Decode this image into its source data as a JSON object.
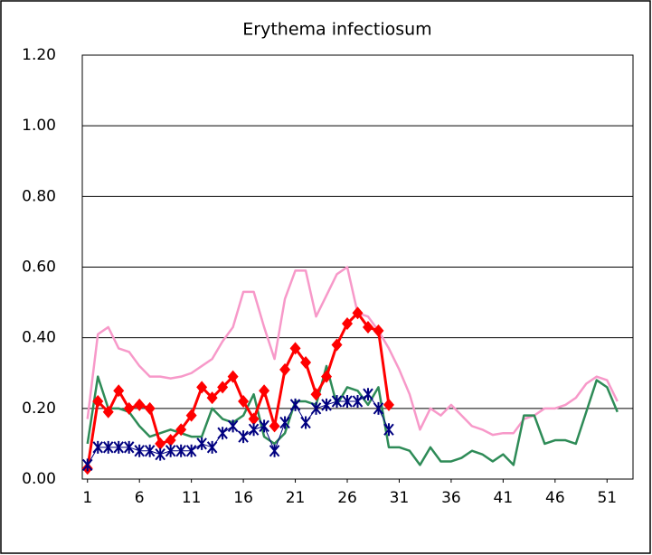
{
  "chart_data": {
    "type": "line",
    "title": "Erythema infectiosum",
    "x": [
      1,
      2,
      3,
      4,
      5,
      6,
      7,
      8,
      9,
      10,
      11,
      12,
      13,
      14,
      15,
      16,
      17,
      18,
      19,
      20,
      21,
      22,
      23,
      24,
      25,
      26,
      27,
      28,
      29,
      30,
      31,
      32,
      33,
      34,
      35,
      36,
      37,
      38,
      39,
      40,
      41,
      42,
      43,
      44,
      45,
      46,
      47,
      48,
      49,
      50,
      51,
      52
    ],
    "xlim": [
      0.5,
      53.5
    ],
    "xticks": [
      1,
      6,
      11,
      16,
      21,
      26,
      31,
      36,
      41,
      46,
      51
    ],
    "ylim": [
      0,
      1.2
    ],
    "yticks": [
      {
        "value": 0,
        "label": "0.00"
      },
      {
        "value": 0.2,
        "label": "0.20"
      },
      {
        "value": 0.4,
        "label": "0.40"
      },
      {
        "value": 0.6,
        "label": "0.60"
      },
      {
        "value": 0.8,
        "label": "0.80"
      },
      {
        "value": 1.0,
        "label": "1.00"
      },
      {
        "value": 1.2,
        "label": "1.20"
      }
    ],
    "grid": true,
    "series": [
      {
        "color": "#f799c9",
        "width": 2.5,
        "marker": "none",
        "values": [
          0.17,
          0.41,
          0.43,
          0.37,
          0.36,
          0.32,
          0.29,
          0.29,
          0.285,
          0.29,
          0.3,
          0.32,
          0.34,
          0.39,
          0.43,
          0.53,
          0.53,
          0.43,
          0.34,
          0.51,
          0.59,
          0.59,
          0.46,
          0.52,
          0.58,
          0.6,
          0.47,
          0.46,
          0.42,
          0.37,
          0.31,
          0.24,
          0.14,
          0.2,
          0.18,
          0.21,
          0.18,
          0.15,
          0.14,
          0.125,
          0.13,
          0.13,
          0.17,
          0.18,
          0.2,
          0.2,
          0.21,
          0.23,
          0.27,
          0.29,
          0.28,
          0.22
        ]
      },
      {
        "color": "#2e8b57",
        "width": 2.5,
        "marker": "none",
        "values": [
          0.1,
          0.29,
          0.2,
          0.2,
          0.19,
          0.15,
          0.12,
          0.13,
          0.14,
          0.13,
          0.12,
          0.12,
          0.2,
          0.17,
          0.16,
          0.18,
          0.24,
          0.12,
          0.1,
          0.13,
          0.22,
          0.22,
          0.21,
          0.32,
          0.21,
          0.26,
          0.25,
          0.21,
          0.26,
          0.09,
          0.09,
          0.08,
          0.04,
          0.09,
          0.05,
          0.05,
          0.06,
          0.08,
          0.07,
          0.05,
          0.07,
          0.04,
          0.18,
          0.18,
          0.1,
          0.11,
          0.11,
          0.1,
          0.19,
          0.28,
          0.26,
          0.19
        ]
      },
      {
        "color": "#ff0000",
        "width": 3,
        "marker": "diamond",
        "values": [
          0.03,
          0.22,
          0.19,
          0.25,
          0.2,
          0.21,
          0.2,
          0.1,
          0.11,
          0.14,
          0.18,
          0.26,
          0.23,
          0.26,
          0.29,
          0.22,
          0.17,
          0.25,
          0.15,
          0.31,
          0.37,
          0.33,
          0.24,
          0.29,
          0.38,
          0.44,
          0.47,
          0.43,
          0.42,
          0.21,
          null,
          null,
          null,
          null,
          null,
          null,
          null,
          null,
          null,
          null,
          null,
          null,
          null,
          null,
          null,
          null,
          null,
          null,
          null,
          null,
          null,
          null
        ]
      },
      {
        "color": "#000080",
        "width": 1,
        "marker": "asterisk",
        "values": [
          0.04,
          0.09,
          0.09,
          0.09,
          0.09,
          0.08,
          0.08,
          0.07,
          0.08,
          0.08,
          0.08,
          0.1,
          0.09,
          0.13,
          0.15,
          0.12,
          0.14,
          0.15,
          0.08,
          0.16,
          0.21,
          0.16,
          0.2,
          0.21,
          0.22,
          0.22,
          0.22,
          0.24,
          0.2,
          0.14,
          null,
          null,
          null,
          null,
          null,
          null,
          null,
          null,
          null,
          null,
          null,
          null,
          null,
          null,
          null,
          null,
          null,
          null,
          null,
          null,
          null,
          null
        ]
      }
    ]
  }
}
